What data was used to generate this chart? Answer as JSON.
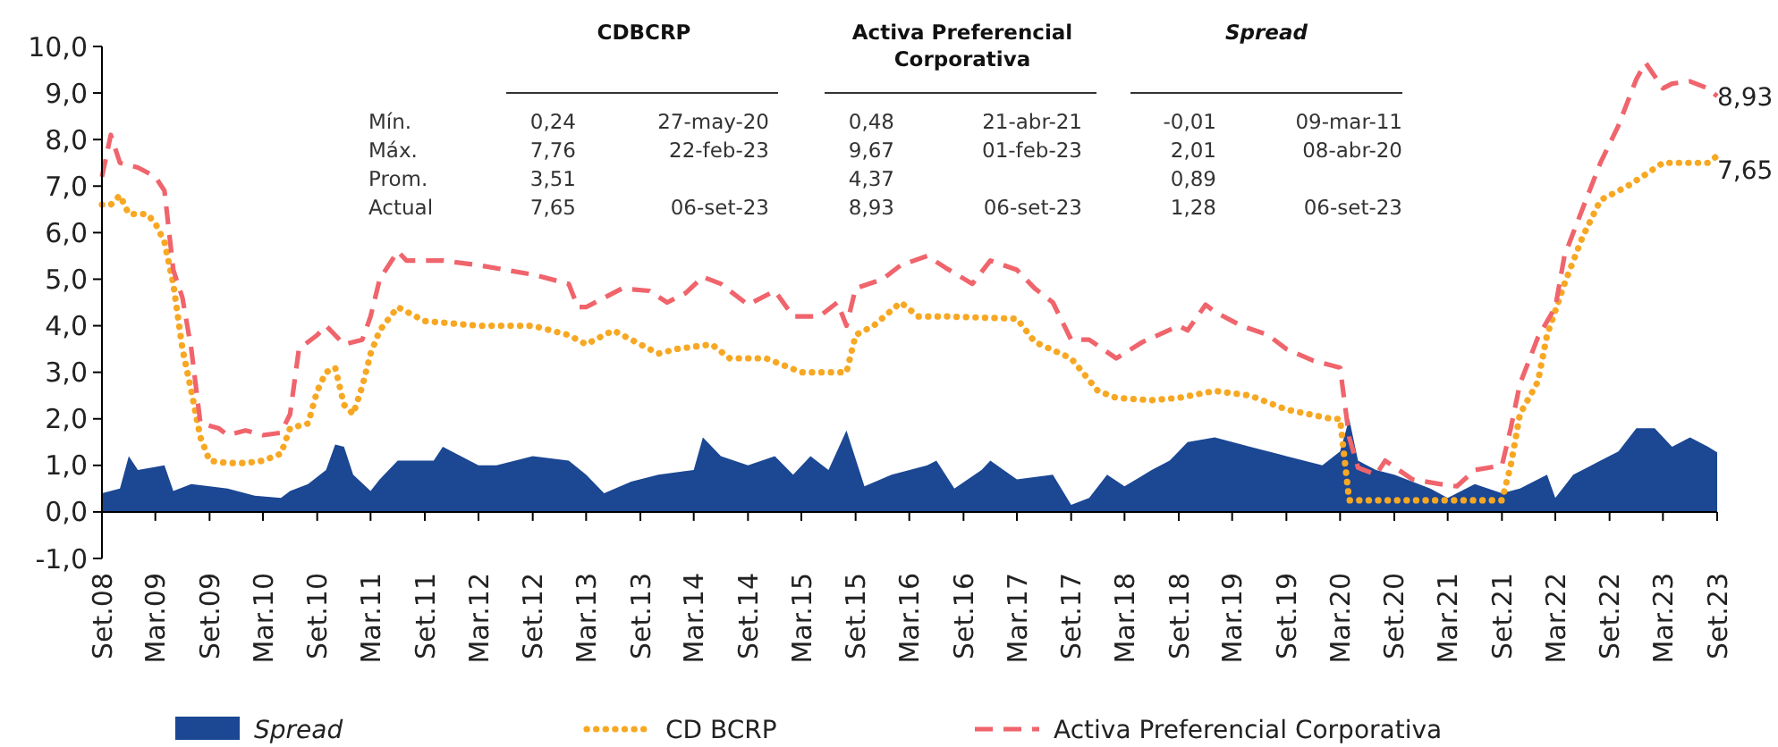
{
  "chart_data": {
    "type": "line",
    "xlim": [
      "2008-09",
      "2023-09"
    ],
    "xticks": [
      {
        "value": "2008-09",
        "label": "Set.08"
      },
      {
        "value": "2009-03",
        "label": "Mar.09"
      },
      {
        "value": "2009-09",
        "label": "Set.09"
      },
      {
        "value": "2010-03",
        "label": "Mar.10"
      },
      {
        "value": "2010-09",
        "label": "Set.10"
      },
      {
        "value": "2011-03",
        "label": "Mar.11"
      },
      {
        "value": "2011-09",
        "label": "Set.11"
      },
      {
        "value": "2012-03",
        "label": "Mar.12"
      },
      {
        "value": "2012-09",
        "label": "Set.12"
      },
      {
        "value": "2013-03",
        "label": "Mar.13"
      },
      {
        "value": "2013-09",
        "label": "Set.13"
      },
      {
        "value": "2014-03",
        "label": "Mar.14"
      },
      {
        "value": "2014-09",
        "label": "Set.14"
      },
      {
        "value": "2015-03",
        "label": "Mar.15"
      },
      {
        "value": "2015-09",
        "label": "Set.15"
      },
      {
        "value": "2016-03",
        "label": "Mar.16"
      },
      {
        "value": "2016-09",
        "label": "Set.16"
      },
      {
        "value": "2017-03",
        "label": "Mar.17"
      },
      {
        "value": "2017-09",
        "label": "Set.17"
      },
      {
        "value": "2018-03",
        "label": "Mar.18"
      },
      {
        "value": "2018-09",
        "label": "Set.18"
      },
      {
        "value": "2019-03",
        "label": "Mar.19"
      },
      {
        "value": "2019-09",
        "label": "Set.19"
      },
      {
        "value": "2020-03",
        "label": "Mar.20"
      },
      {
        "value": "2020-09",
        "label": "Set.20"
      },
      {
        "value": "2021-03",
        "label": "Mar.21"
      },
      {
        "value": "2021-09",
        "label": "Set.21"
      },
      {
        "value": "2022-03",
        "label": "Mar.22"
      },
      {
        "value": "2022-09",
        "label": "Set.22"
      },
      {
        "value": "2023-03",
        "label": "Mar.23"
      },
      {
        "value": "2023-09",
        "label": "Set.23"
      }
    ],
    "ylim": [
      -1,
      10
    ],
    "yticks": [
      {
        "value": -1,
        "label": "-1,0"
      },
      {
        "value": 0,
        "label": "0,0"
      },
      {
        "value": 1,
        "label": "1,0"
      },
      {
        "value": 2,
        "label": "2,0"
      },
      {
        "value": 3,
        "label": "3,0"
      },
      {
        "value": 4,
        "label": "4,0"
      },
      {
        "value": 5,
        "label": "5,0"
      },
      {
        "value": 6,
        "label": "6,0"
      },
      {
        "value": 7,
        "label": "7,0"
      },
      {
        "value": 8,
        "label": "8,0"
      },
      {
        "value": 9,
        "label": "9,0"
      },
      {
        "value": 10,
        "label": "10,0"
      }
    ],
    "grid": false,
    "legend": "bottom",
    "series": [
      {
        "name": "Spread",
        "type": "area",
        "color": "#1b4793",
        "x": [
          "2008-09",
          "2008-11",
          "2008-12",
          "2009-01",
          "2009-04",
          "2009-05",
          "2009-07",
          "2009-09",
          "2009-11",
          "2010-02",
          "2010-05",
          "2010-06",
          "2010-08",
          "2010-10",
          "2010-11",
          "2010-12",
          "2011-01",
          "2011-03",
          "2011-04",
          "2011-06",
          "2011-10",
          "2011-11",
          "2012-03",
          "2012-05",
          "2012-09",
          "2013-01",
          "2013-03",
          "2013-05",
          "2013-08",
          "2013-11",
          "2014-03",
          "2014-04",
          "2014-06",
          "2014-09",
          "2014-12",
          "2015-02",
          "2015-04",
          "2015-06",
          "2015-08",
          "2015-10",
          "2016-01",
          "2016-05",
          "2016-06",
          "2016-08",
          "2016-11",
          "2016-12",
          "2017-03",
          "2017-07",
          "2017-09",
          "2017-11",
          "2018-01",
          "2018-03",
          "2018-06",
          "2018-08",
          "2018-10",
          "2019-01",
          "2019-05",
          "2019-09",
          "2020-01",
          "2020-03",
          "2020-04",
          "2020-05",
          "2020-07",
          "2020-09",
          "2021-01",
          "2021-03",
          "2021-06",
          "2021-09",
          "2021-11",
          "2022-02",
          "2022-03",
          "2022-05",
          "2022-08",
          "2022-10",
          "2022-12",
          "2023-02",
          "2023-04",
          "2023-06",
          "2023-08",
          "2023-09"
        ],
        "values": [
          0.4,
          0.5,
          1.2,
          0.9,
          1.0,
          0.45,
          0.6,
          0.55,
          0.5,
          0.35,
          0.3,
          0.45,
          0.6,
          0.9,
          1.45,
          1.4,
          0.8,
          0.45,
          0.7,
          1.1,
          1.1,
          1.4,
          1.0,
          1.0,
          1.2,
          1.1,
          0.8,
          0.4,
          0.65,
          0.8,
          0.9,
          1.6,
          1.2,
          1.0,
          1.2,
          0.8,
          1.2,
          0.9,
          1.75,
          0.55,
          0.8,
          1.0,
          1.1,
          0.5,
          0.9,
          1.1,
          0.7,
          0.8,
          0.15,
          0.3,
          0.8,
          0.55,
          0.9,
          1.1,
          1.5,
          1.6,
          1.4,
          1.2,
          1.0,
          1.3,
          2.0,
          1.1,
          0.9,
          0.8,
          0.5,
          0.3,
          0.6,
          0.4,
          0.5,
          0.8,
          0.3,
          0.8,
          1.1,
          1.3,
          1.8,
          1.8,
          1.4,
          1.6,
          1.4,
          1.28
        ]
      },
      {
        "name": "CD BCRP",
        "line_style": "dotted",
        "color": "#f7a823",
        "x": [
          "2008-09",
          "2008-10",
          "2008-11",
          "2008-12",
          "2009-02",
          "2009-03",
          "2009-04",
          "2009-05",
          "2009-06",
          "2009-07",
          "2009-08",
          "2009-09",
          "2009-11",
          "2010-01",
          "2010-03",
          "2010-05",
          "2010-06",
          "2010-08",
          "2010-09",
          "2010-10",
          "2010-11",
          "2010-12",
          "2011-01",
          "2011-02",
          "2011-03",
          "2011-04",
          "2011-06",
          "2011-09",
          "2012-03",
          "2012-09",
          "2013-01",
          "2013-03",
          "2013-06",
          "2013-11",
          "2014-01",
          "2014-05",
          "2014-07",
          "2014-11",
          "2015-03",
          "2015-08",
          "2015-09",
          "2015-11",
          "2016-02",
          "2016-04",
          "2016-07",
          "2017-03",
          "2017-05",
          "2017-09",
          "2017-12",
          "2018-02",
          "2018-06",
          "2018-09",
          "2019-01",
          "2019-05",
          "2019-09",
          "2020-02",
          "2020-03",
          "2020-04",
          "2021-09",
          "2021-10",
          "2021-11",
          "2022-01",
          "2022-02",
          "2022-04",
          "2022-06",
          "2022-08",
          "2022-11",
          "2023-01",
          "2023-03",
          "2023-08",
          "2023-09"
        ],
        "values": [
          6.6,
          6.6,
          6.8,
          6.4,
          6.4,
          6.2,
          5.8,
          4.9,
          3.5,
          2.6,
          1.6,
          1.1,
          1.05,
          1.05,
          1.1,
          1.25,
          1.8,
          1.9,
          2.6,
          3.0,
          3.1,
          2.3,
          2.1,
          2.7,
          3.4,
          3.9,
          4.4,
          4.1,
          4.0,
          4.0,
          3.8,
          3.6,
          3.9,
          3.4,
          3.5,
          3.6,
          3.3,
          3.3,
          3.0,
          3.0,
          3.8,
          4.0,
          4.5,
          4.2,
          4.2,
          4.15,
          3.65,
          3.3,
          2.6,
          2.45,
          2.4,
          2.45,
          2.6,
          2.5,
          2.2,
          2.0,
          2.0,
          0.25,
          0.25,
          1.0,
          2.1,
          2.8,
          3.8,
          4.9,
          5.9,
          6.7,
          7.0,
          7.25,
          7.5,
          7.5,
          7.65
        ]
      },
      {
        "name": "Activa Preferencial Corporativa",
        "line_style": "dashed",
        "color": "#f0646c",
        "x": [
          "2008-09",
          "2008-10",
          "2008-11",
          "2009-01",
          "2009-03",
          "2009-04",
          "2009-05",
          "2009-06",
          "2009-07",
          "2009-08",
          "2009-10",
          "2009-11",
          "2010-01",
          "2010-03",
          "2010-05",
          "2010-06",
          "2010-07",
          "2010-09",
          "2010-10",
          "2010-12",
          "2011-02",
          "2011-03",
          "2011-04",
          "2011-06",
          "2011-07",
          "2011-11",
          "2012-03",
          "2012-06",
          "2012-09",
          "2013-01",
          "2013-02",
          "2013-03",
          "2013-07",
          "2013-10",
          "2013-12",
          "2014-02",
          "2014-04",
          "2014-06",
          "2014-09",
          "2014-12",
          "2015-02",
          "2015-05",
          "2015-07",
          "2015-08",
          "2015-09",
          "2015-12",
          "2016-02",
          "2016-05",
          "2016-07",
          "2016-10",
          "2016-12",
          "2017-03",
          "2017-05",
          "2017-07",
          "2017-09",
          "2017-11",
          "2018-02",
          "2018-05",
          "2018-09",
          "2018-10",
          "2018-12",
          "2019-01",
          "2019-04",
          "2019-07",
          "2019-09",
          "2019-12",
          "2020-03",
          "2020-04",
          "2020-05",
          "2020-07",
          "2020-08",
          "2020-11",
          "2021-02",
          "2021-04",
          "2021-06",
          "2021-09",
          "2021-10",
          "2021-11",
          "2022-01",
          "2022-03",
          "2022-04",
          "2022-05",
          "2022-08",
          "2022-10",
          "2022-12",
          "2023-01",
          "2023-03",
          "2023-04",
          "2023-06",
          "2023-08",
          "2023-09"
        ],
        "values": [
          7.2,
          8.1,
          7.5,
          7.4,
          7.2,
          6.9,
          5.2,
          4.6,
          3.5,
          1.9,
          1.8,
          1.65,
          1.75,
          1.65,
          1.7,
          2.1,
          3.5,
          3.8,
          4.0,
          3.6,
          3.7,
          4.2,
          5.0,
          5.6,
          5.4,
          5.4,
          5.3,
          5.2,
          5.1,
          4.9,
          4.4,
          4.4,
          4.8,
          4.75,
          4.5,
          4.7,
          5.05,
          4.9,
          4.45,
          4.75,
          4.2,
          4.2,
          4.5,
          4.0,
          4.8,
          5.0,
          5.3,
          5.5,
          5.25,
          4.9,
          5.4,
          5.2,
          4.8,
          4.5,
          3.7,
          3.7,
          3.3,
          3.65,
          4.0,
          3.9,
          4.45,
          4.3,
          4.0,
          3.8,
          3.5,
          3.25,
          3.1,
          1.6,
          0.95,
          0.8,
          1.1,
          0.7,
          0.6,
          0.55,
          0.9,
          1.0,
          1.8,
          2.75,
          3.75,
          4.4,
          5.5,
          6.0,
          7.5,
          8.3,
          9.3,
          9.65,
          9.1,
          9.2,
          9.25,
          9.1,
          8.93
        ]
      }
    ],
    "annotations": [
      "Mín.",
      "Máx.",
      "Prom.",
      "Actual",
      "CDBCRP",
      "0,24",
      "7,76",
      "3,51",
      "7,65",
      "27-may-20",
      "22-feb-23",
      "06-set-23",
      "Activa Preferencial Corporativa",
      "0,48",
      "9,67",
      "4,37",
      "8,93",
      "21-abr-21",
      "01-feb-23",
      "06-set-23",
      "Spread",
      "-0,01",
      "2,01",
      "0,89",
      "1,28",
      "09-mar-11",
      "08-abr-20",
      "06-set-23",
      {
        "text": "8,93",
        "x": "2023-09",
        "y": 8.93
      },
      {
        "text": "7,65",
        "x": "2023-09",
        "y": 7.65
      }
    ]
  }
}
